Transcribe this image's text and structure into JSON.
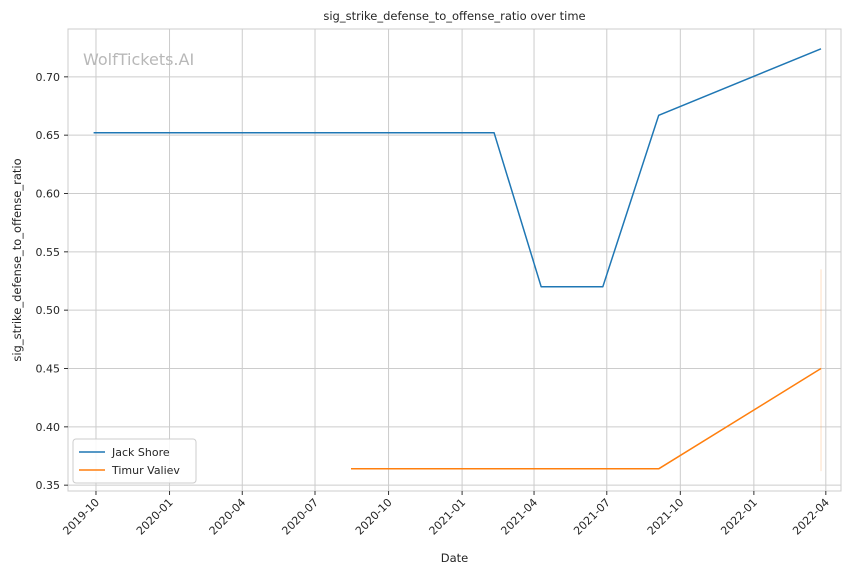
{
  "chart_data": {
    "type": "line",
    "title": "sig_strike_defense_to_offense_ratio over time",
    "xlabel": "Date",
    "ylabel": "sig_strike_defense_to_offense_ratio",
    "watermark": "WolfTickets.AI",
    "x_ticks": [
      "2019-10",
      "2020-01",
      "2020-04",
      "2020-07",
      "2020-10",
      "2021-01",
      "2021-04",
      "2021-07",
      "2021-10",
      "2022-01",
      "2022-04"
    ],
    "y_ticks": [
      "0.35",
      "0.40",
      "0.45",
      "0.50",
      "0.55",
      "0.60",
      "0.65",
      "0.70"
    ],
    "xlim": [
      "2019-08-27",
      "2022-04-20"
    ],
    "ylim": [
      0.345,
      0.741
    ],
    "grid": true,
    "legend_position": "lower-left",
    "series": [
      {
        "name": "Jack Shore",
        "color": "#1f77b4",
        "points": [
          {
            "x": "2019-09-28",
            "y": 0.652
          },
          {
            "x": "2021-02-10",
            "y": 0.652
          },
          {
            "x": "2021-04-10",
            "y": 0.52
          },
          {
            "x": "2021-06-26",
            "y": 0.52
          },
          {
            "x": "2021-09-04",
            "y": 0.667
          },
          {
            "x": "2022-03-26",
            "y": 0.724
          }
        ]
      },
      {
        "name": "Timur Valiev",
        "color": "#ff7f0e",
        "points": [
          {
            "x": "2020-08-15",
            "y": 0.364
          },
          {
            "x": "2021-09-04",
            "y": 0.364
          },
          {
            "x": "2022-03-26",
            "y": 0.45
          }
        ]
      }
    ]
  }
}
